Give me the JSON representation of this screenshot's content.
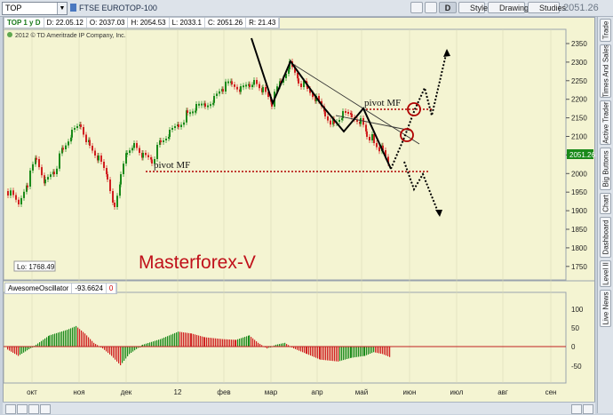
{
  "toolbar": {
    "symbol": "TOP",
    "description": "FTSE EUROTOP-100",
    "d_label": "D",
    "style_label": "Style",
    "drawings_label": "Drawings",
    "studies_label": "Studies",
    "last_price": "2051.26"
  },
  "ohlc": {
    "symbol_period": "TOP 1 y D",
    "date": "D: 22.05.12",
    "open": "O: 2037.03",
    "high": "H: 2054.53",
    "low": "L: 2033.1",
    "close": "C: 2051.26",
    "range": "R: 21.43"
  },
  "copyright": "2012 © TD Ameritrade IP Company, Inc.",
  "watermark": "Masterforex-V",
  "low_label": "Lo: 1768.49",
  "current_price_tag": "2051.26",
  "pivot_labels": [
    "pivot MF",
    "pivot MF"
  ],
  "price_axis": [
    "2350",
    "2300",
    "2250",
    "2200",
    "2150",
    "2100",
    "2050",
    "2000",
    "1950",
    "1900",
    "1850",
    "1800",
    "1750"
  ],
  "oscillator": {
    "name": "AwesomeOscillator",
    "value": "-93.6624",
    "zero": "0",
    "axis": [
      "100",
      "50",
      "0",
      "-50"
    ]
  },
  "months": [
    "окт",
    "ноя",
    "дек",
    "12",
    "фев",
    "мар",
    "апр",
    "май",
    "июн",
    "июл",
    "авг",
    "сен"
  ],
  "side_tabs": [
    "Trade",
    "Times And Sales",
    "Active Trader",
    "Big Buttons",
    "Chart",
    "Dashboard",
    "Level II",
    "Live News"
  ],
  "colors": {
    "up": "#1a8a1a",
    "down": "#d02020",
    "background": "#f4f4d2",
    "pivot": "#b00000",
    "watermark": "#c0101a"
  }
}
